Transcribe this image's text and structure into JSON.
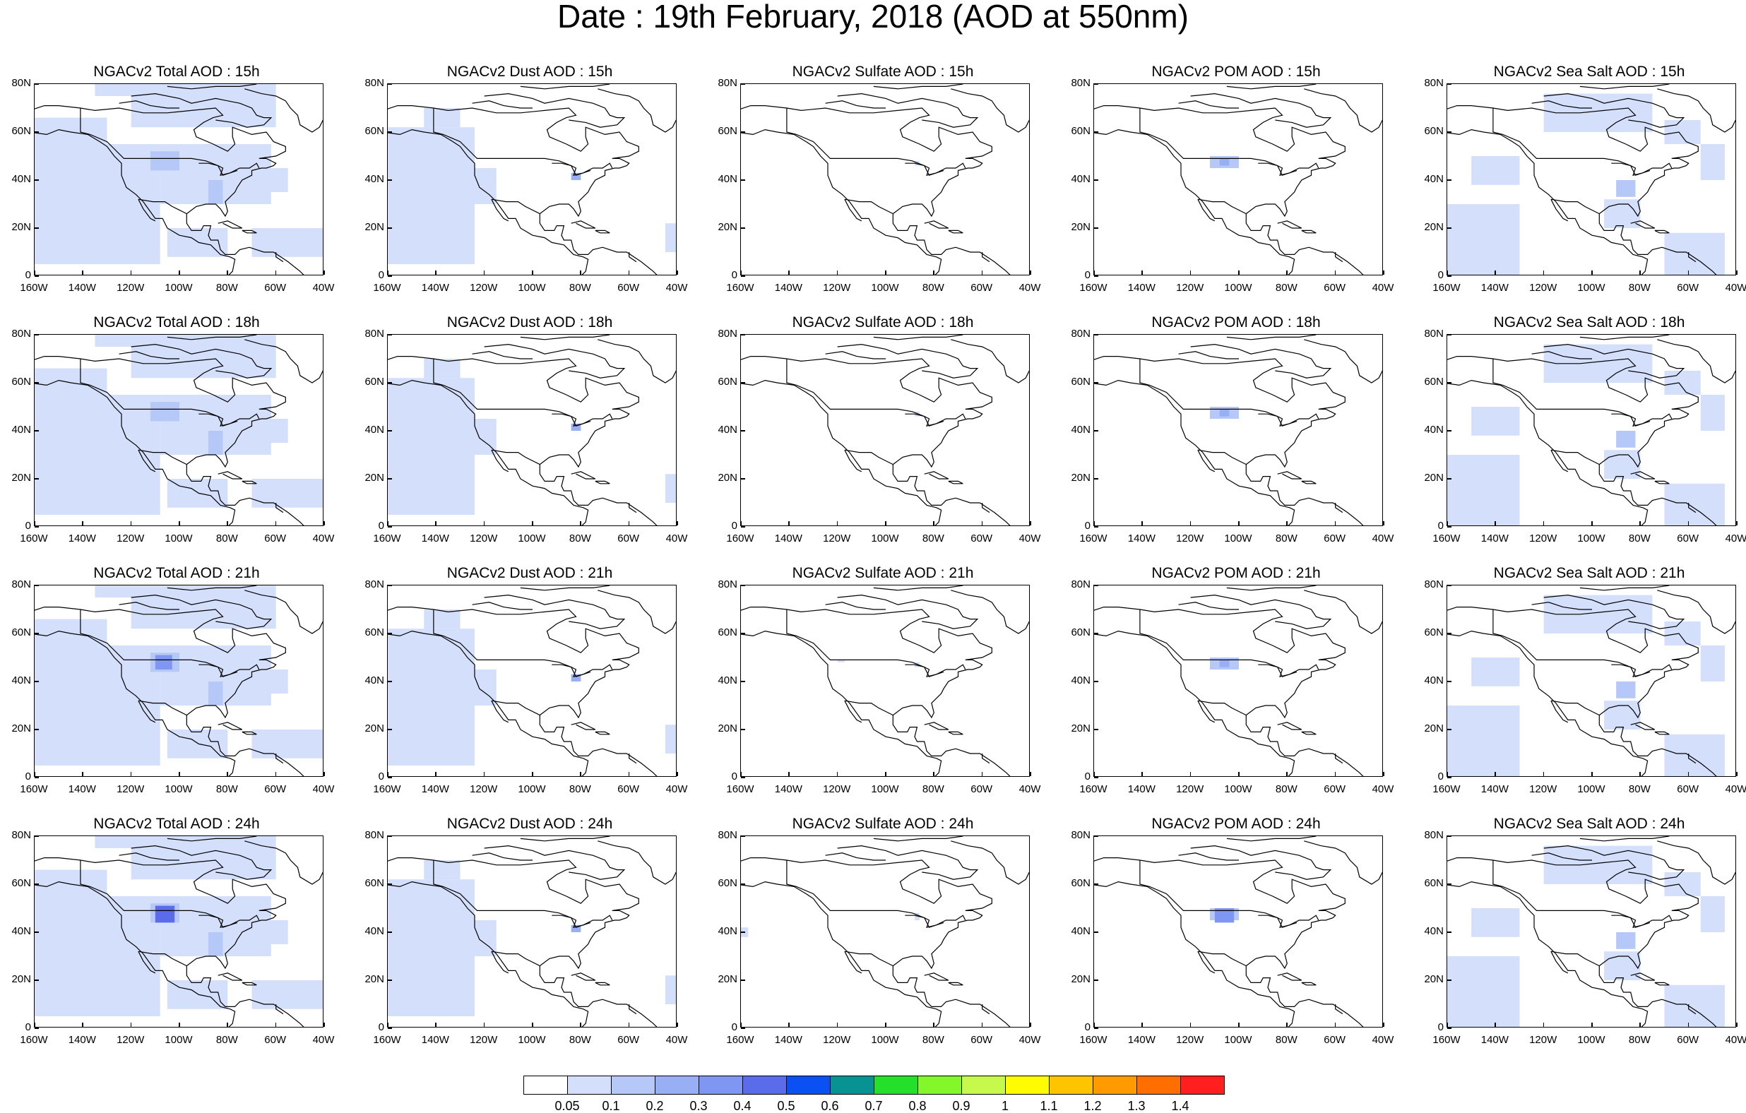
{
  "title": "Date : 19th February, 2018 (AOD at 550nm)",
  "rows": [
    "15h",
    "18h",
    "21h",
    "24h"
  ],
  "panels": [
    [
      {
        "title": "NGACv2 Total AOD : 15h",
        "field": "total"
      },
      {
        "title": "NGACv2 Dust AOD : 15h",
        "field": "dust"
      },
      {
        "title": "NGACv2 Sulfate AOD : 15h",
        "field": "sulfate"
      },
      {
        "title": "NGACv2 POM AOD : 15h",
        "field": "pom"
      },
      {
        "title": "NGACv2 Sea Salt AOD : 15h",
        "field": "seasalt"
      }
    ],
    [
      {
        "title": "NGACv2 Total AOD : 18h",
        "field": "total"
      },
      {
        "title": "NGACv2 Dust AOD : 18h",
        "field": "dust"
      },
      {
        "title": "NGACv2 Sulfate AOD : 18h",
        "field": "sulfate"
      },
      {
        "title": "NGACv2 POM AOD : 18h",
        "field": "pom"
      },
      {
        "title": "NGACv2 Sea Salt AOD : 18h",
        "field": "seasalt"
      }
    ],
    [
      {
        "title": "NGACv2 Total AOD : 21h",
        "field": "total"
      },
      {
        "title": "NGACv2 Dust AOD : 21h",
        "field": "dust"
      },
      {
        "title": "NGACv2 Sulfate AOD : 21h",
        "field": "sulfate"
      },
      {
        "title": "NGACv2 POM AOD : 21h",
        "field": "pom"
      },
      {
        "title": "NGACv2 Sea Salt AOD : 21h",
        "field": "seasalt"
      }
    ],
    [
      {
        "title": "NGACv2 Total AOD : 24h",
        "field": "total"
      },
      {
        "title": "NGACv2 Dust AOD : 24h",
        "field": "dust"
      },
      {
        "title": "NGACv2 Sulfate AOD : 24h",
        "field": "sulfate"
      },
      {
        "title": "NGACv2 POM AOD : 24h",
        "field": "pom"
      },
      {
        "title": "NGACv2 Sea Salt  AOD : 24h",
        "field": "seasalt"
      }
    ]
  ],
  "map": {
    "lon_range": [
      -160,
      -40
    ],
    "lat_range": [
      0,
      80
    ],
    "x_ticks": [
      "160W",
      "140W",
      "120W",
      "100W",
      "80W",
      "60W",
      "40W"
    ],
    "y_ticks": [
      "80N",
      "60N",
      "40N",
      "20N",
      "0"
    ]
  },
  "colorbar": {
    "levels": [
      "0.05",
      "0.1",
      "0.2",
      "0.3",
      "0.4",
      "0.5",
      "0.6",
      "0.7",
      "0.8",
      "0.9",
      "1",
      "1.1",
      "1.2",
      "1.3",
      "1.4"
    ],
    "colors": [
      "#ffffff",
      "#d3dffb",
      "#b6c8f8",
      "#98aff6",
      "#7f96f2",
      "#5b6cea",
      "#0a50f2",
      "#089393",
      "#24e02b",
      "#84f72a",
      "#c7f94c",
      "#fffc00",
      "#ffc400",
      "#ff9a00",
      "#ff6e00",
      "#ff1f1f"
    ]
  }
}
